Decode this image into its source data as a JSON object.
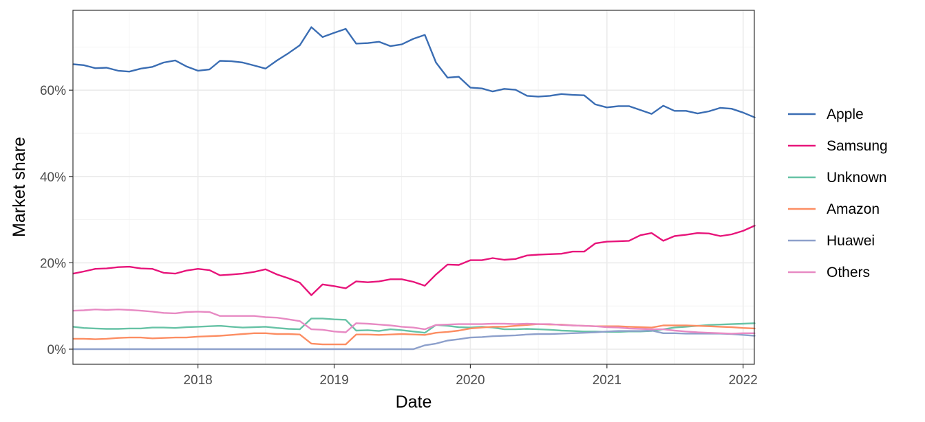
{
  "chart_data": {
    "type": "line",
    "title": "",
    "xlabel": "Date",
    "ylabel": "Market share",
    "x_type": "date",
    "xlim": [
      "2017-01-31",
      "2022-01-31"
    ],
    "ylim": [
      -0.035,
      0.785
    ],
    "x_ticks": [
      {
        "date": "2018-01-01",
        "label": "2018"
      },
      {
        "date": "2019-01-01",
        "label": "2019"
      },
      {
        "date": "2020-01-01",
        "label": "2020"
      },
      {
        "date": "2021-01-01",
        "label": "2021"
      },
      {
        "date": "2022-01-01",
        "label": "2022"
      }
    ],
    "y_ticks": [
      {
        "value": 0.0,
        "label": "0%"
      },
      {
        "value": 0.2,
        "label": "20%"
      },
      {
        "value": 0.4,
        "label": "40%"
      },
      {
        "value": 0.6,
        "label": "60%"
      }
    ],
    "grid": true,
    "legend_position": "right",
    "dates": [
      "2017-02-01",
      "2017-03-01",
      "2017-04-01",
      "2017-05-01",
      "2017-06-01",
      "2017-07-01",
      "2017-08-01",
      "2017-09-01",
      "2017-10-01",
      "2017-11-01",
      "2017-12-01",
      "2018-01-01",
      "2018-02-01",
      "2018-03-01",
      "2018-04-01",
      "2018-05-01",
      "2018-06-01",
      "2018-07-01",
      "2018-08-01",
      "2018-09-01",
      "2018-10-01",
      "2018-11-01",
      "2018-12-01",
      "2019-01-01",
      "2019-02-01",
      "2019-03-01",
      "2019-04-01",
      "2019-05-01",
      "2019-06-01",
      "2019-07-01",
      "2019-08-01",
      "2019-09-01",
      "2019-10-01",
      "2019-11-01",
      "2019-12-01",
      "2020-01-01",
      "2020-02-01",
      "2020-03-01",
      "2020-04-01",
      "2020-05-01",
      "2020-06-01",
      "2020-07-01",
      "2020-08-01",
      "2020-09-01",
      "2020-10-01",
      "2020-11-01",
      "2020-12-01",
      "2021-01-01",
      "2021-02-01",
      "2021-03-01",
      "2021-04-01",
      "2021-05-01",
      "2021-06-01",
      "2021-07-01",
      "2021-08-01",
      "2021-09-01",
      "2021-10-01",
      "2021-11-01",
      "2021-12-01",
      "2022-01-01",
      "2022-02-01"
    ],
    "series": [
      {
        "name": "Apple",
        "color": "#3a6db3",
        "values": [
          0.66,
          0.658,
          0.651,
          0.652,
          0.645,
          0.643,
          0.65,
          0.654,
          0.664,
          0.669,
          0.655,
          0.645,
          0.648,
          0.668,
          0.667,
          0.664,
          0.657,
          0.65,
          0.669,
          0.686,
          0.704,
          0.746,
          0.723,
          0.733,
          0.742,
          0.708,
          0.709,
          0.712,
          0.702,
          0.706,
          0.719,
          0.728,
          0.664,
          0.629,
          0.631,
          0.606,
          0.604,
          0.597,
          0.603,
          0.601,
          0.587,
          0.585,
          0.587,
          0.591,
          0.589,
          0.588,
          0.567,
          0.56,
          0.563,
          0.563,
          0.554,
          0.545,
          0.564,
          0.552,
          0.552,
          0.546,
          0.551,
          0.559,
          0.557,
          0.548,
          0.537
        ]
      },
      {
        "name": "Samsung",
        "color": "#e7147a",
        "values": [
          0.175,
          0.18,
          0.186,
          0.187,
          0.19,
          0.191,
          0.187,
          0.186,
          0.177,
          0.175,
          0.182,
          0.186,
          0.183,
          0.171,
          0.173,
          0.175,
          0.179,
          0.185,
          0.173,
          0.164,
          0.154,
          0.125,
          0.15,
          0.146,
          0.141,
          0.157,
          0.155,
          0.157,
          0.162,
          0.162,
          0.156,
          0.147,
          0.173,
          0.196,
          0.195,
          0.206,
          0.206,
          0.211,
          0.207,
          0.209,
          0.217,
          0.219,
          0.22,
          0.221,
          0.226,
          0.226,
          0.245,
          0.249,
          0.25,
          0.251,
          0.264,
          0.269,
          0.251,
          0.262,
          0.265,
          0.269,
          0.268,
          0.262,
          0.266,
          0.274,
          0.286
        ]
      },
      {
        "name": "Unknown",
        "color": "#66c2a5",
        "values": [
          0.052,
          0.049,
          0.048,
          0.047,
          0.047,
          0.048,
          0.048,
          0.05,
          0.05,
          0.049,
          0.051,
          0.052,
          0.053,
          0.054,
          0.052,
          0.05,
          0.051,
          0.052,
          0.049,
          0.047,
          0.046,
          0.071,
          0.071,
          0.069,
          0.068,
          0.043,
          0.044,
          0.042,
          0.046,
          0.044,
          0.041,
          0.038,
          0.056,
          0.054,
          0.051,
          0.05,
          0.052,
          0.05,
          0.046,
          0.046,
          0.047,
          0.046,
          0.045,
          0.043,
          0.042,
          0.041,
          0.041,
          0.04,
          0.04,
          0.041,
          0.041,
          0.042,
          0.046,
          0.05,
          0.052,
          0.054,
          0.056,
          0.057,
          0.058,
          0.059,
          0.06
        ]
      },
      {
        "name": "Amazon",
        "color": "#fc8d62",
        "values": [
          0.024,
          0.024,
          0.023,
          0.024,
          0.026,
          0.027,
          0.027,
          0.025,
          0.026,
          0.027,
          0.027,
          0.029,
          0.03,
          0.031,
          0.033,
          0.035,
          0.037,
          0.037,
          0.035,
          0.035,
          0.034,
          0.013,
          0.011,
          0.011,
          0.011,
          0.034,
          0.034,
          0.033,
          0.034,
          0.035,
          0.034,
          0.033,
          0.038,
          0.04,
          0.043,
          0.048,
          0.05,
          0.052,
          0.052,
          0.054,
          0.056,
          0.058,
          0.057,
          0.057,
          0.055,
          0.054,
          0.053,
          0.053,
          0.053,
          0.052,
          0.051,
          0.05,
          0.055,
          0.055,
          0.055,
          0.054,
          0.053,
          0.052,
          0.051,
          0.049,
          0.048
        ]
      },
      {
        "name": "Huawei",
        "color": "#8da0cb",
        "values": [
          0.0,
          0.0,
          0.0,
          0.0,
          0.0,
          0.0,
          0.0,
          0.0,
          0.0,
          0.0,
          0.0,
          0.0,
          0.0,
          0.0,
          0.0,
          0.0,
          0.0,
          0.0,
          0.0,
          0.0,
          0.0,
          0.0,
          0.0,
          0.0,
          0.0,
          0.0,
          0.0,
          0.0,
          0.0,
          0.0,
          0.0,
          0.009,
          0.013,
          0.02,
          0.023,
          0.027,
          0.028,
          0.03,
          0.031,
          0.032,
          0.034,
          0.035,
          0.035,
          0.036,
          0.037,
          0.038,
          0.039,
          0.041,
          0.042,
          0.042,
          0.042,
          0.043,
          0.037,
          0.037,
          0.036,
          0.036,
          0.036,
          0.036,
          0.035,
          0.033,
          0.031
        ]
      },
      {
        "name": "Others",
        "color": "#e78ac3",
        "values": [
          0.089,
          0.09,
          0.092,
          0.091,
          0.092,
          0.091,
          0.089,
          0.087,
          0.084,
          0.083,
          0.086,
          0.087,
          0.086,
          0.077,
          0.077,
          0.077,
          0.077,
          0.074,
          0.073,
          0.069,
          0.065,
          0.046,
          0.045,
          0.041,
          0.039,
          0.06,
          0.059,
          0.057,
          0.055,
          0.052,
          0.05,
          0.046,
          0.056,
          0.057,
          0.058,
          0.058,
          0.058,
          0.059,
          0.059,
          0.058,
          0.059,
          0.058,
          0.058,
          0.056,
          0.055,
          0.054,
          0.053,
          0.051,
          0.05,
          0.048,
          0.047,
          0.046,
          0.046,
          0.043,
          0.041,
          0.039,
          0.038,
          0.037,
          0.036,
          0.037,
          0.037
        ]
      }
    ]
  }
}
